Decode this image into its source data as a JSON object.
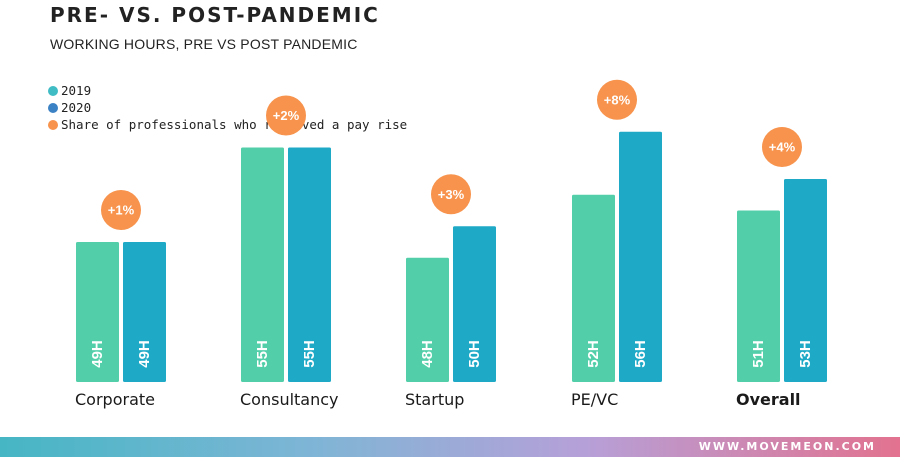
{
  "title": "PRE- VS. POST-PANDEMIC",
  "subtitle": "WORKING HOURS, PRE VS POST PANDEMIC",
  "footer": "WWW.MOVEMEON.COM",
  "colors": {
    "series_2019": "#52cfa8",
    "series_2020": "#1ea9c6",
    "pay_rise": "#f7934c",
    "legend_2019": "#3fbcc4",
    "legend_2020": "#3b82c4"
  },
  "legend": [
    {
      "label": "2019",
      "color": "#3fbcc4"
    },
    {
      "label": "2020",
      "color": "#3b82c4"
    },
    {
      "label": "Share of professionals who received a pay rise",
      "color": "#f7934c"
    }
  ],
  "chart_data": {
    "type": "bar",
    "title": "PRE- VS. POST-PANDEMIC",
    "subtitle": "WORKING HOURS, PRE VS POST PANDEMIC",
    "categories": [
      "Corporate",
      "Consultancy",
      "Startup",
      "PE/VC",
      "Overall"
    ],
    "bold_categories": [
      "Overall"
    ],
    "series": [
      {
        "name": "2019",
        "values": [
          49,
          55,
          48,
          52,
          51
        ],
        "labels": [
          "49H",
          "55H",
          "48H",
          "52H",
          "51H"
        ]
      },
      {
        "name": "2020",
        "values": [
          49,
          55,
          50,
          56,
          53
        ],
        "labels": [
          "49H",
          "55H",
          "50H",
          "56H",
          "53H"
        ]
      },
      {
        "name": "Share of professionals who received a pay rise",
        "values": [
          1,
          2,
          3,
          8,
          4
        ],
        "labels": [
          "+1%",
          "+2%",
          "+3%",
          "+8%",
          "+4%"
        ]
      }
    ],
    "unit": "H",
    "axes_visible": false,
    "grid": false,
    "legend_position": "top-left"
  }
}
